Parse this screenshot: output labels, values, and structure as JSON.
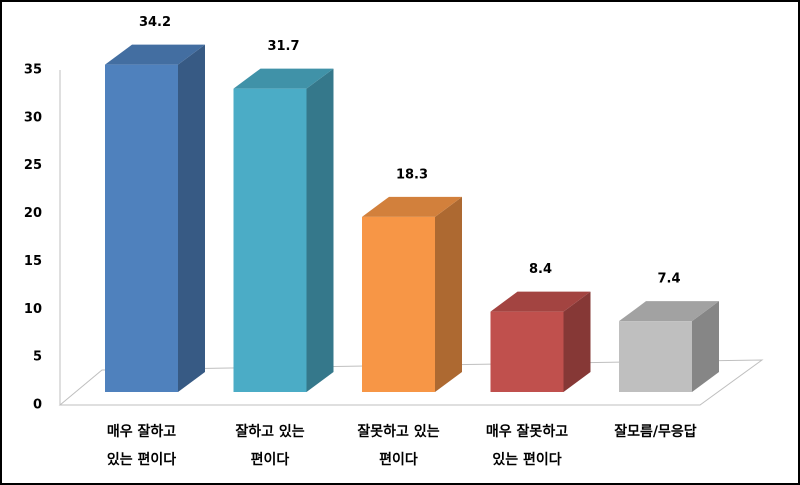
{
  "chart_data": {
    "type": "bar3d",
    "categories": [
      "매우 잘하고\n있는 편이다",
      "잘하고 있는\n편이다",
      "잘못하고 있는\n편이다",
      "매우 잘못하고\n있는 편이다",
      "잘모름/무응답"
    ],
    "values": [
      34.2,
      31.7,
      18.3,
      8.4,
      7.4
    ],
    "colors": [
      "#4f81bd",
      "#4bacc6",
      "#f79646",
      "#c0504d",
      "#bfbfbf"
    ],
    "ylim": [
      0,
      35
    ],
    "yticks": [
      0,
      5,
      10,
      15,
      20,
      25,
      30,
      35
    ],
    "grid": false
  }
}
